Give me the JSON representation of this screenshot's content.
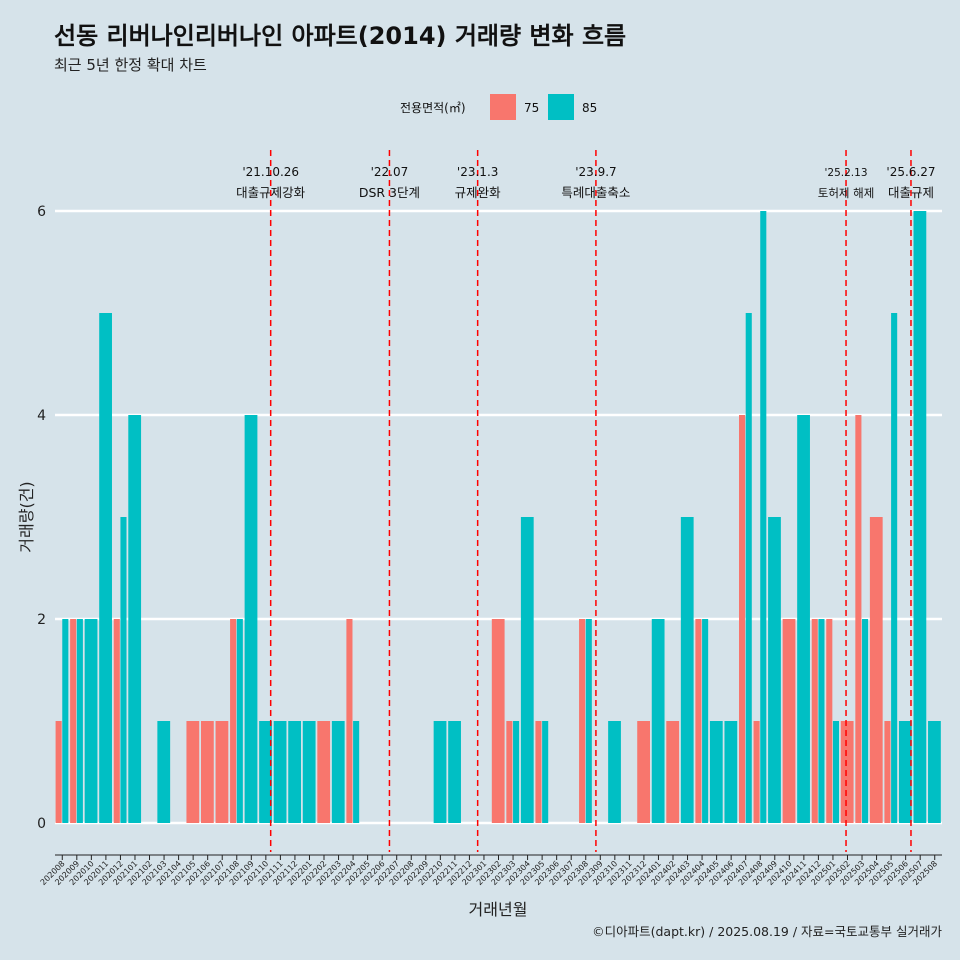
{
  "chart_data": {
    "type": "bar",
    "title": "선동 리버나인리버나인 아파트(2014) 거래량 변화 흐름",
    "subtitle": "최근 5년 한정 확대 차트",
    "xlabel": "거래년월",
    "ylabel": "거래량(건)",
    "ylim": [
      0,
      6
    ],
    "yticks": [
      0,
      2,
      4,
      6
    ],
    "grid": "horizontal",
    "legend": {
      "title": "전용면적(㎡)",
      "position": "top"
    },
    "categories": [
      "202008",
      "202009",
      "202010",
      "202011",
      "202012",
      "202101",
      "202102",
      "202103",
      "202104",
      "202105",
      "202106",
      "202107",
      "202108",
      "202109",
      "202110",
      "202111",
      "202112",
      "202201",
      "202202",
      "202203",
      "202204",
      "202205",
      "202206",
      "202207",
      "202208",
      "202209",
      "202210",
      "202211",
      "202212",
      "202301",
      "202302",
      "202303",
      "202304",
      "202305",
      "202306",
      "202307",
      "202308",
      "202309",
      "202310",
      "202311",
      "202312",
      "202401",
      "202402",
      "202403",
      "202404",
      "202405",
      "202406",
      "202407",
      "202408",
      "202409",
      "202410",
      "202411",
      "202412",
      "202501",
      "202502",
      "202503",
      "202504",
      "202505",
      "202506",
      "202507",
      "202508"
    ],
    "series": [
      {
        "name": "75",
        "color": "#f8766d",
        "values": [
          1,
          2,
          0,
          0,
          2,
          0,
          0,
          0,
          0,
          1,
          1,
          1,
          2,
          0,
          0,
          0,
          0,
          0,
          1,
          0,
          2,
          0,
          0,
          0,
          0,
          0,
          0,
          0,
          0,
          0,
          2,
          1,
          0,
          1,
          0,
          0,
          2,
          0,
          0,
          0,
          1,
          0,
          1,
          0,
          2,
          0,
          0,
          4,
          1,
          0,
          2,
          0,
          2,
          2,
          1,
          4,
          3,
          1,
          0,
          0,
          0
        ]
      },
      {
        "name": "85",
        "color": "#00bfc4",
        "values": [
          2,
          2,
          2,
          5,
          3,
          4,
          0,
          1,
          0,
          0,
          0,
          0,
          2,
          4,
          1,
          1,
          1,
          1,
          0,
          1,
          1,
          0,
          0,
          0,
          0,
          0,
          1,
          1,
          0,
          0,
          0,
          1,
          3,
          1,
          0,
          0,
          2,
          0,
          1,
          0,
          0,
          2,
          0,
          3,
          2,
          1,
          1,
          5,
          6,
          3,
          0,
          4,
          2,
          1,
          0,
          2,
          0,
          5,
          1,
          6,
          1
        ]
      }
    ],
    "annotations": [
      {
        "date": "'21.10.26",
        "label": "대출규제강화",
        "month": "202110",
        "day": 26
      },
      {
        "date": "'22.07",
        "label": "DSR 3단계",
        "month": "202207",
        "day": 1
      },
      {
        "date": "'23.1.3",
        "label": "규제완화",
        "month": "202301",
        "day": 3
      },
      {
        "date": "'23.9.7",
        "label": "특례대출축소",
        "month": "202309",
        "day": 7
      },
      {
        "date": "'25.2.13",
        "label": "토허제 해제",
        "month": "202502",
        "day": 13
      },
      {
        "date": "'25.6.27",
        "label": "대출규제",
        "month": "202506",
        "day": 27
      }
    ],
    "caption": "©디아파트(dapt.kr) / 2025.08.19 / 자료=국토교통부 실거래가",
    "annotation_color": "#ff0000"
  }
}
